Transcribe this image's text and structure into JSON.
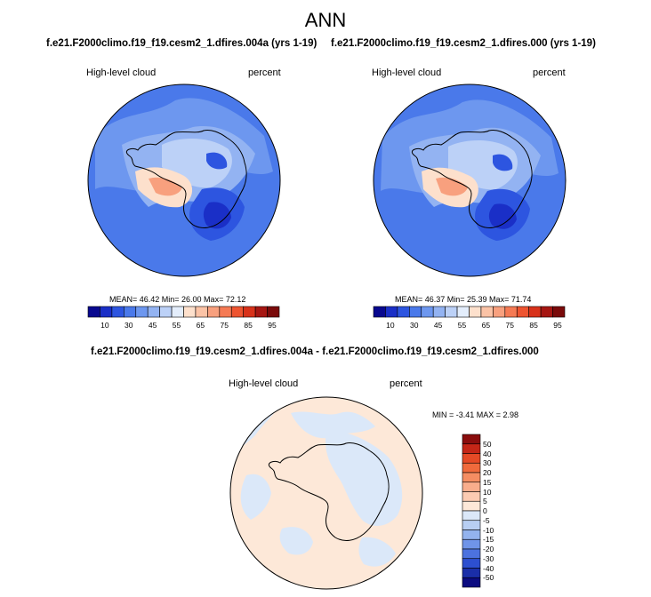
{
  "title": "ANN",
  "panels": [
    {
      "case_title": "f.e21.F2000climo.f19_f19.cesm2_1.dfires.004a (yrs 1-19)",
      "variable": "High-level cloud",
      "units": "percent",
      "stats": "MEAN=  46.42  Min=  26.00  Max=  72.12"
    },
    {
      "case_title": "f.e21.F2000climo.f19_f19.cesm2_1.dfires.000 (yrs 1-19)",
      "variable": "High-level cloud",
      "units": "percent",
      "stats": "MEAN=  46.37  Min=  25.39  Max=  71.74"
    }
  ],
  "diff_panel": {
    "case_title": "f.e21.F2000climo.f19_f19.cesm2_1.dfires.004a - f.e21.F2000climo.f19_f19.cesm2_1.dfires.000",
    "variable": "High-level cloud",
    "units": "percent",
    "stats": "MIN = -3.41 MAX =   2.98"
  },
  "colorbar_abs": {
    "labels": [
      "10",
      "30",
      "45",
      "55",
      "65",
      "75",
      "85",
      "95"
    ],
    "colors": [
      "#08088f",
      "#1a2fc7",
      "#2d55e0",
      "#4a79ea",
      "#6d97ef",
      "#93b3f2",
      "#bcd1f7",
      "#e3edfb",
      "#fde0cc",
      "#fbc3a6",
      "#f8a07e",
      "#f57a54",
      "#ee5430",
      "#d8321a",
      "#a61612",
      "#7a0a0a"
    ]
  },
  "colorbar_diff": {
    "labels": [
      "50",
      "40",
      "30",
      "20",
      "15",
      "10",
      "5",
      "0",
      "-5",
      "-10",
      "-15",
      "-20",
      "-30",
      "-40",
      "-50"
    ],
    "colors": [
      "#8a0d0d",
      "#c42617",
      "#e54a26",
      "#f06a3c",
      "#f58d62",
      "#f9ad8c",
      "#fccbb2",
      "#fde8d8",
      "#dbe8f9",
      "#b8cff3",
      "#93b3ee",
      "#6f94e8",
      "#4c72df",
      "#2d4fd0",
      "#1a2ea8",
      "#0b0b80"
    ]
  },
  "map_colors": {
    "ocean_blue": "#4a79ea",
    "mid_blue": "#6d97ef",
    "light_blue": "#93b3f2",
    "pale_blue": "#bcd1f7",
    "deep_blue": "#2d55e0",
    "darkest_blue": "#1a2fc7",
    "peach": "#fde0cc",
    "salmon": "#f8a07e",
    "diff_peach": "#fde8d8",
    "diff_lightblue": "#dbe8f9"
  }
}
